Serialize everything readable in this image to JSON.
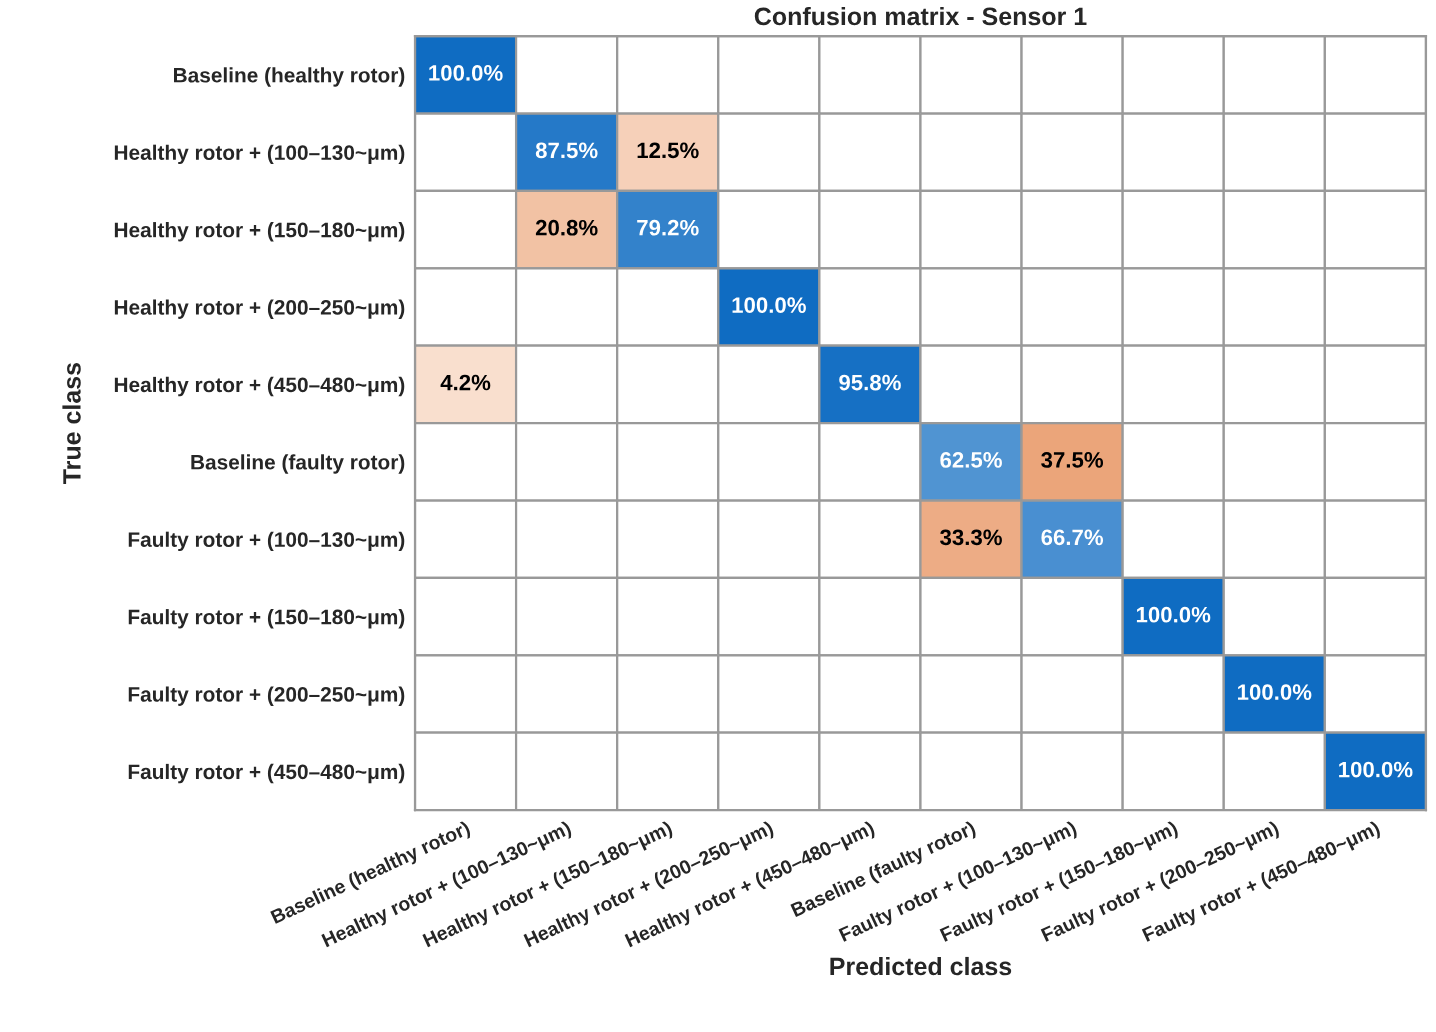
{
  "chart_data": {
    "type": "heatmap",
    "title": "Confusion matrix - Sensor 1",
    "xlabel": "Predicted class",
    "ylabel": "True class",
    "categories": [
      "Baseline (healthy rotor)",
      "Healthy rotor + (100–130~μm)",
      "Healthy rotor + (150–180~μm)",
      "Healthy rotor + (200–250~μm)",
      "Healthy rotor + (450–480~μm)",
      "Baseline (faulty rotor)",
      "Faulty rotor + (100–130~μm)",
      "Faulty rotor + (150–180~μm)",
      "Faulty rotor + (200–250~μm)",
      "Faulty rotor + (450–480~μm)"
    ],
    "y_categories": [
      "Baseline (healthy rotor)",
      "Healthy rotor + (100–130~μm)",
      "Healthy rotor + (150–180~μm)",
      "Healthy rotor + (200–250~μm)",
      "Healthy rotor + (450–480~μm)",
      "Baseline (faulty rotor)",
      "Faulty rotor + (100–130~μm)",
      "Faulty rotor + (150–180~μm)",
      "Faulty rotor + (200–250~μm)",
      "Faulty rotor + (450–480~μm)"
    ],
    "cells": [
      [
        100.0,
        null,
        null,
        null,
        null,
        null,
        null,
        null,
        null,
        null
      ],
      [
        null,
        87.5,
        12.5,
        null,
        null,
        null,
        null,
        null,
        null,
        null
      ],
      [
        null,
        20.8,
        79.2,
        null,
        null,
        null,
        null,
        null,
        null,
        null
      ],
      [
        null,
        null,
        null,
        100.0,
        null,
        null,
        null,
        null,
        null,
        null
      ],
      [
        4.2,
        null,
        null,
        null,
        95.8,
        null,
        null,
        null,
        null,
        null
      ],
      [
        null,
        null,
        null,
        null,
        null,
        62.5,
        37.5,
        null,
        null,
        null
      ],
      [
        null,
        null,
        null,
        null,
        null,
        33.3,
        66.7,
        null,
        null,
        null
      ],
      [
        null,
        null,
        null,
        null,
        null,
        null,
        null,
        100.0,
        null,
        null
      ],
      [
        null,
        null,
        null,
        null,
        null,
        null,
        null,
        null,
        100.0,
        null
      ],
      [
        null,
        null,
        null,
        null,
        null,
        null,
        null,
        null,
        null,
        100.0
      ]
    ],
    "cell_labels": [
      [
        "100.0%",
        null,
        null,
        null,
        null,
        null,
        null,
        null,
        null,
        null
      ],
      [
        null,
        "87.5%",
        "12.5%",
        null,
        null,
        null,
        null,
        null,
        null,
        null
      ],
      [
        null,
        "20.8%",
        "79.2%",
        null,
        null,
        null,
        null,
        null,
        null,
        null
      ],
      [
        null,
        null,
        null,
        "100.0%",
        null,
        null,
        null,
        null,
        null,
        null
      ],
      [
        "4.2%",
        null,
        null,
        null,
        "95.8%",
        null,
        null,
        null,
        null,
        null
      ],
      [
        null,
        null,
        null,
        null,
        null,
        "62.5%",
        "37.5%",
        null,
        null,
        null
      ],
      [
        null,
        null,
        null,
        null,
        null,
        "33.3%",
        "66.7%",
        null,
        null,
        null
      ],
      [
        null,
        null,
        null,
        null,
        null,
        null,
        null,
        "100.0%",
        null,
        null
      ],
      [
        null,
        null,
        null,
        null,
        null,
        null,
        null,
        null,
        "100.0%",
        null
      ],
      [
        null,
        null,
        null,
        null,
        null,
        null,
        null,
        null,
        null,
        "100.0%"
      ]
    ]
  }
}
